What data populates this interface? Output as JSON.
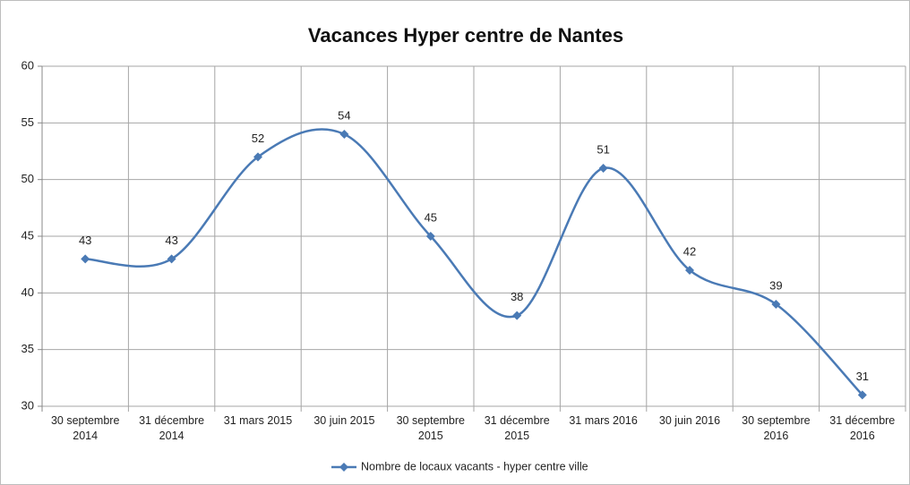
{
  "chart_data": {
    "type": "line",
    "title": "Vacances Hyper centre de Nantes",
    "categories": [
      "30 septembre 2014",
      "31 décembre 2014",
      "31 mars 2015",
      "30 juin 2015",
      "30 septembre 2015",
      "31 décembre 2015",
      "31 mars 2016",
      "30 juin 2016",
      "30 septembre 2016",
      "31 décembre 2016"
    ],
    "series": [
      {
        "name": "Nombre de locaux vacants - hyper centre ville",
        "color": "#4a7ab5",
        "values": [
          43,
          43,
          52,
          54,
          45,
          38,
          51,
          42,
          39,
          31
        ]
      }
    ],
    "ylim": [
      30,
      60
    ],
    "yticks": [
      30,
      35,
      40,
      45,
      50,
      55,
      60
    ],
    "grid": true,
    "smooth": true,
    "legend": "bottom"
  }
}
